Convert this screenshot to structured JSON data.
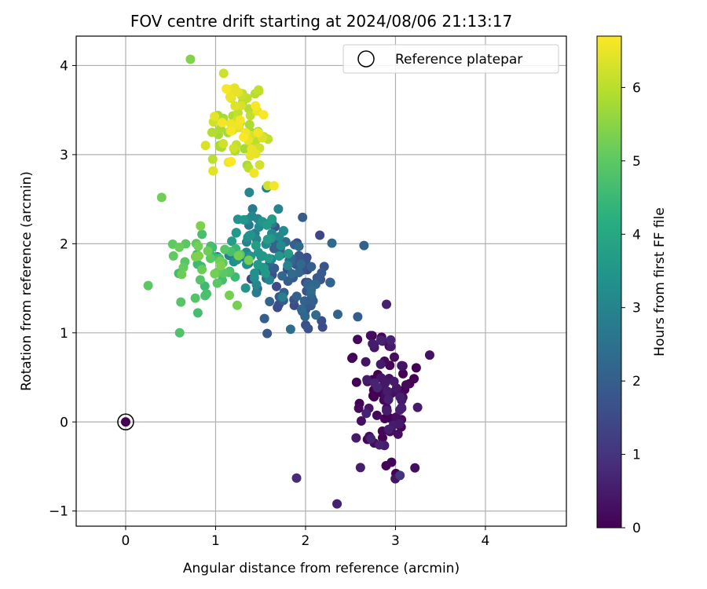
{
  "chart_data": {
    "type": "scatter",
    "title": "FOV centre drift starting at 2024/08/06 21:13:17",
    "xlabel": "Angular distance from reference (arcmin)",
    "ylabel": "Rotation from reference (arcmin)",
    "colorbar_label": "Hours from first FF file",
    "xlim": [
      -0.55,
      4.9
    ],
    "ylim": [
      -1.17,
      4.33
    ],
    "x_ticks": [
      0,
      1,
      2,
      3,
      4
    ],
    "y_ticks": [
      -1,
      0,
      1,
      2,
      3,
      4
    ],
    "colorbar_range": [
      0,
      6.7
    ],
    "colorbar_ticks": [
      0,
      1,
      2,
      3,
      4,
      5,
      6
    ],
    "colormap": "viridis",
    "grid": true,
    "legend": {
      "label": "Reference platepar",
      "position": "top-right"
    },
    "reference_point": {
      "x": 0,
      "y": 0
    },
    "groups": [
      {
        "hours": 0.2,
        "x_range": [
          2.4,
          3.4
        ],
        "y_range": [
          -0.95,
          1.35
        ],
        "count": 95
      },
      {
        "hours": 1.9,
        "x_range": [
          1.3,
          2.5
        ],
        "y_range": [
          0.85,
          2.45
        ],
        "count": 85
      },
      {
        "hours": 3.2,
        "x_range": [
          0.95,
          2.0
        ],
        "y_range": [
          1.2,
          2.75
        ],
        "count": 65
      },
      {
        "hours": 4.9,
        "x_range": [
          0.3,
          1.5
        ],
        "y_range": [
          1.0,
          2.6
        ],
        "count": 50
      },
      {
        "hours": 6.2,
        "x_range": [
          0.65,
          1.75
        ],
        "y_range": [
          2.5,
          4.1
        ],
        "count": 80
      }
    ],
    "points": [
      {
        "x": 0,
        "y": 0,
        "hours": 0
      },
      {
        "x": 1.65,
        "y": 2.65,
        "hours": 6.6
      },
      {
        "x": 0.72,
        "y": 4.07,
        "hours": 5.4
      },
      {
        "x": 3.38,
        "y": 0.75,
        "hours": 0.3
      },
      {
        "x": 2.35,
        "y": -0.92,
        "hours": 0.6
      },
      {
        "x": 1.9,
        "y": -0.63,
        "hours": 0.8
      },
      {
        "x": 0.6,
        "y": 1.0,
        "hours": 4.8
      },
      {
        "x": 0.25,
        "y": 1.53,
        "hours": 5.0
      },
      {
        "x": 0.4,
        "y": 2.52,
        "hours": 5.2
      },
      {
        "x": 2.9,
        "y": 1.32,
        "hours": 0.6
      },
      {
        "x": 3.05,
        "y": -0.6,
        "hours": 1.0
      },
      {
        "x": 2.58,
        "y": 1.18,
        "hours": 2.0
      },
      {
        "x": 2.65,
        "y": 1.98,
        "hours": 2.1
      }
    ]
  }
}
